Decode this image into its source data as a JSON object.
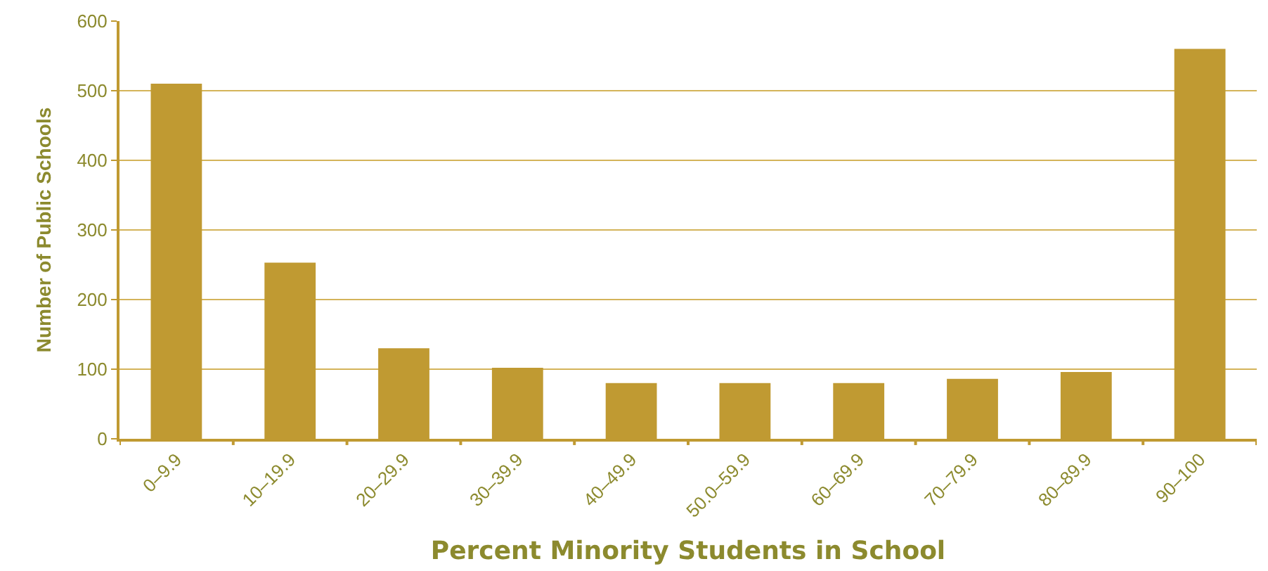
{
  "chart_data": {
    "type": "bar",
    "xlabel": "Percent Minority Students in School",
    "ylabel": "Number of Public Schools",
    "categories": [
      "0–9.9",
      "10–19.9",
      "20–29.9",
      "30–39.9",
      "40–49.9",
      "50.0–59.9",
      "60–69.9",
      "70–79.9",
      "80–89.9",
      "90–100"
    ],
    "values": [
      510,
      253,
      130,
      102,
      80,
      80,
      80,
      86,
      96,
      560
    ],
    "color": "#c09a32",
    "ylim": [
      0,
      600
    ],
    "yticks": [
      0,
      100,
      200,
      300,
      400,
      500,
      600
    ],
    "grid": "y",
    "legend": false
  }
}
